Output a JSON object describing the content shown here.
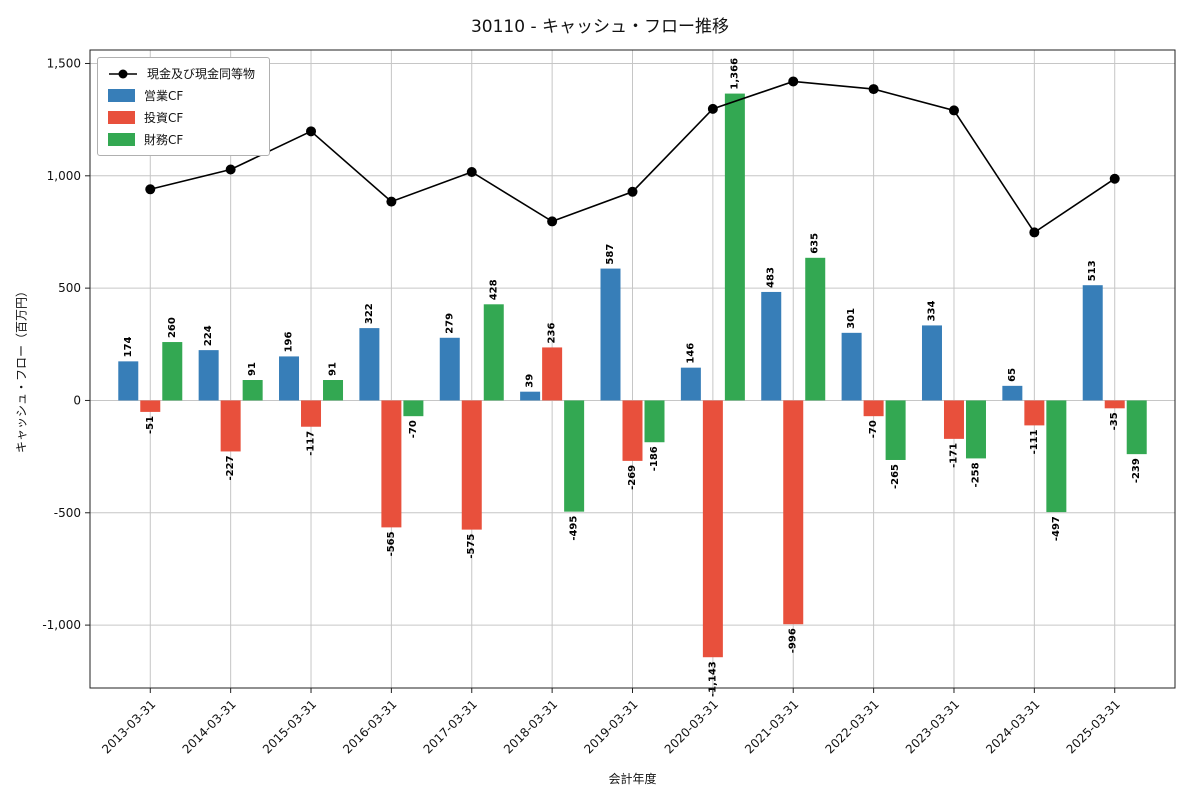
{
  "figure": {
    "title": "30110 - キャッシュ・フロー推移",
    "xlabel": "会計年度",
    "ylabel": "キャッシュ・フロー（百万円）"
  },
  "chart_data": {
    "type": "bar",
    "subtype": "grouped-bars-with-line",
    "title": "30110 - キャッシュ・フロー推移",
    "xlabel": "会計年度",
    "ylabel": "キャッシュ・フロー（百万円）",
    "categories": [
      "2013-03-31",
      "2014-03-31",
      "2015-03-31",
      "2016-03-31",
      "2017-03-31",
      "2018-03-31",
      "2019-03-31",
      "2020-03-31",
      "2021-03-31",
      "2022-03-31",
      "2023-03-31",
      "2024-03-31",
      "2025-03-31"
    ],
    "series": [
      {
        "name": "現金及び現金同等物",
        "type": "line",
        "color": "#000000",
        "values": [
          940,
          1028,
          1198,
          885,
          1017,
          797,
          929,
          1298,
          1420,
          1386,
          1291,
          748,
          987
        ]
      },
      {
        "name": "営業CF",
        "type": "bar",
        "color": "#377eb8",
        "values": [
          174,
          224,
          196,
          322,
          279,
          39,
          587,
          146,
          483,
          301,
          334,
          65,
          513
        ]
      },
      {
        "name": "投資CF",
        "type": "bar",
        "color": "#e8503c",
        "values": [
          -51,
          -227,
          -117,
          -565,
          -575,
          236,
          -269,
          -1143,
          -996,
          -70,
          -171,
          -111,
          -35
        ]
      },
      {
        "name": "財務CF",
        "type": "bar",
        "color": "#33a852",
        "values": [
          260,
          91,
          91,
          -70,
          428,
          -495,
          -186,
          1366,
          635,
          -265,
          -258,
          -497,
          -239
        ]
      }
    ],
    "ylim": [
      -1280,
      1560
    ],
    "yticks": [
      -1000,
      -500,
      0,
      500,
      1000,
      1500
    ],
    "grid": true,
    "legend_position": "upper-left",
    "bar_value_labels": true
  }
}
